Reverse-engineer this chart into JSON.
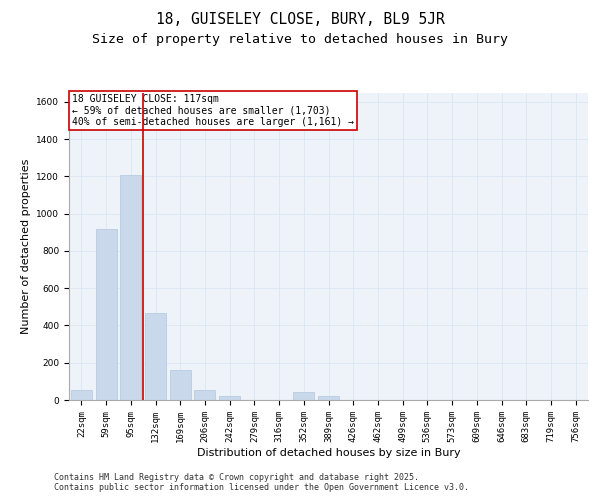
{
  "title_line1": "18, GUISELEY CLOSE, BURY, BL9 5JR",
  "title_line2": "Size of property relative to detached houses in Bury",
  "xlabel": "Distribution of detached houses by size in Bury",
  "ylabel": "Number of detached properties",
  "categories": [
    "22sqm",
    "59sqm",
    "95sqm",
    "132sqm",
    "169sqm",
    "206sqm",
    "242sqm",
    "279sqm",
    "316sqm",
    "352sqm",
    "389sqm",
    "426sqm",
    "462sqm",
    "499sqm",
    "536sqm",
    "573sqm",
    "609sqm",
    "646sqm",
    "683sqm",
    "719sqm",
    "756sqm"
  ],
  "values": [
    55,
    920,
    1205,
    465,
    160,
    55,
    20,
    0,
    0,
    45,
    20,
    0,
    0,
    0,
    0,
    0,
    0,
    0,
    0,
    0,
    0
  ],
  "bar_color": "#c9d9eb",
  "bar_edge_color": "#b0c8de",
  "vline_color": "#cc0000",
  "annotation_text": "18 GUISELEY CLOSE: 117sqm\n← 59% of detached houses are smaller (1,703)\n40% of semi-detached houses are larger (1,161) →",
  "annotation_box_color": "#cc0000",
  "ylim": [
    0,
    1650
  ],
  "yticks": [
    0,
    200,
    400,
    600,
    800,
    1000,
    1200,
    1400,
    1600
  ],
  "grid_color": "#dce6f1",
  "bg_color": "#eef3f9",
  "footer": "Contains HM Land Registry data © Crown copyright and database right 2025.\nContains public sector information licensed under the Open Government Licence v3.0.",
  "title_fontsize": 10.5,
  "subtitle_fontsize": 9.5,
  "label_fontsize": 8,
  "tick_fontsize": 6.5,
  "footer_fontsize": 6,
  "annotation_fontsize": 7,
  "vline_x_pos": 2.5
}
